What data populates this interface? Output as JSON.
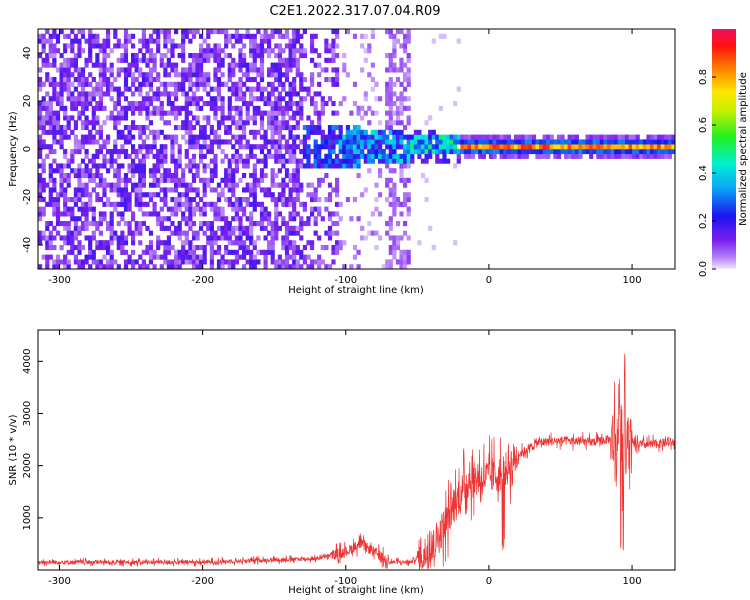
{
  "title": "C2E1.2022.317.07.04.R09",
  "chart_data": [
    {
      "type": "heatmap",
      "xlabel": "Height of straight line (km)",
      "ylabel": "Frequency (Hz)",
      "xlim": [
        -315,
        130
      ],
      "ylim": [
        -50,
        50
      ],
      "xticks": [
        -300,
        -200,
        -100,
        0,
        100
      ],
      "yticks": [
        -40,
        -20,
        0,
        20,
        40
      ],
      "colorbar": {
        "label": "Normalized spectral amplitude",
        "range": [
          0,
          1
        ],
        "ticks": [
          "0.0",
          "0.2",
          "0.4",
          "0.6",
          "0.8"
        ]
      },
      "description_points": [
        {
          "x": -315,
          "band_center": 0,
          "band_halfwidth": 50,
          "amplitude": 0.15
        },
        {
          "x": -130,
          "band_center": 0,
          "band_halfwidth": 50,
          "amplitude": 0.15
        },
        {
          "x": -110,
          "band_center": 0,
          "band_halfwidth": 8,
          "amplitude": 0.3
        },
        {
          "x": -50,
          "band_center": 1,
          "band_halfwidth": 4,
          "amplitude": 0.35
        },
        {
          "x": 0,
          "band_center": 1,
          "band_halfwidth": 2,
          "amplitude": 0.8
        },
        {
          "x": 130,
          "band_center": 0,
          "band_halfwidth": 2,
          "amplitude": 0.85
        }
      ]
    },
    {
      "type": "line",
      "xlabel": "Height of straight line (km)",
      "ylabel": "SNR (10 * v/v)",
      "xlim": [
        -315,
        130
      ],
      "ylim": [
        0,
        4600
      ],
      "xticks": [
        -300,
        -200,
        -100,
        0,
        100
      ],
      "yticks": [
        1000,
        2000,
        3000,
        4000
      ],
      "color": "#ee3333",
      "envelope": [
        {
          "x": -315,
          "y": 150
        },
        {
          "x": -200,
          "y": 150
        },
        {
          "x": -120,
          "y": 220
        },
        {
          "x": -100,
          "y": 350
        },
        {
          "x": -90,
          "y": 500
        },
        {
          "x": -80,
          "y": 350
        },
        {
          "x": -70,
          "y": 150
        },
        {
          "x": -55,
          "y": 150
        },
        {
          "x": -45,
          "y": 300
        },
        {
          "x": -35,
          "y": 650
        },
        {
          "x": -25,
          "y": 1200
        },
        {
          "x": -15,
          "y": 1700
        },
        {
          "x": 0,
          "y": 1800
        },
        {
          "x": 10,
          "y": 1850
        },
        {
          "x": 20,
          "y": 2200
        },
        {
          "x": 35,
          "y": 2450
        },
        {
          "x": 50,
          "y": 2480
        },
        {
          "x": 70,
          "y": 2450
        },
        {
          "x": 85,
          "y": 2500
        },
        {
          "x": 92,
          "y": 2500
        },
        {
          "x": 100,
          "y": 2400
        },
        {
          "x": 110,
          "y": 2400
        },
        {
          "x": 130,
          "y": 2450
        }
      ]
    }
  ]
}
